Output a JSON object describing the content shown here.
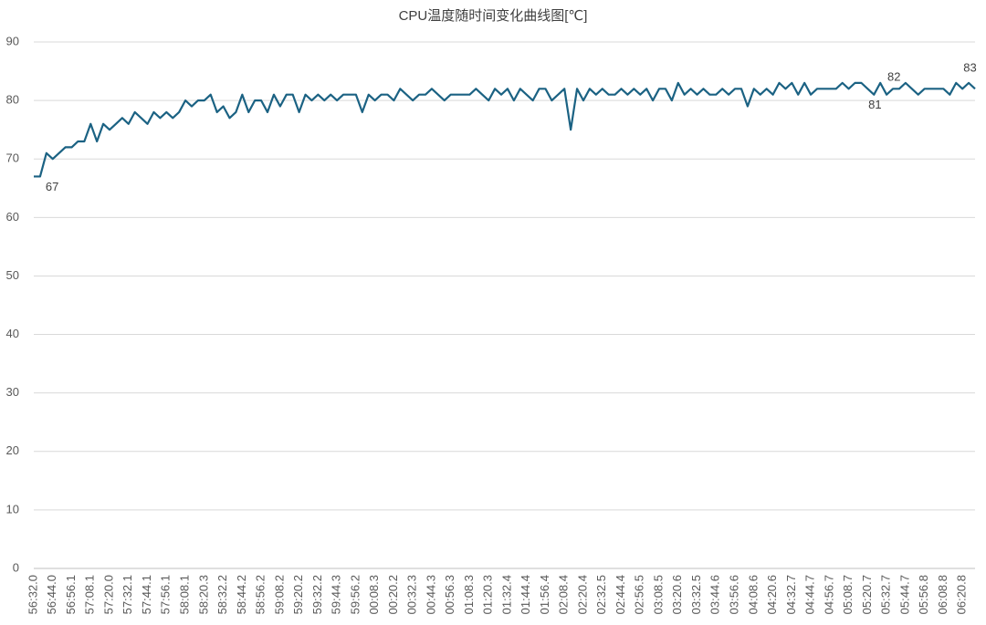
{
  "chart_data": {
    "type": "line",
    "title": "CPU温度随时间变化曲线图[℃]",
    "categories": [
      "56:32.0",
      null,
      null,
      "56:44.0",
      null,
      null,
      "56:56.1",
      null,
      null,
      "57:08.1",
      null,
      null,
      "57:20.0",
      null,
      null,
      "57:32.1",
      null,
      null,
      "57:44.1",
      null,
      null,
      "57:56.1",
      null,
      null,
      "58:08.1",
      null,
      null,
      "58:20.3",
      null,
      null,
      "58:32.2",
      null,
      null,
      "58:44.2",
      null,
      null,
      "58:56.2",
      null,
      null,
      "59:08.2",
      null,
      null,
      "59:20.2",
      null,
      null,
      "59:32.2",
      null,
      null,
      "59:44.3",
      null,
      null,
      "59:56.2",
      null,
      null,
      "00:08.3",
      null,
      null,
      "00:20.2",
      null,
      null,
      "00:32.3",
      null,
      null,
      "00:44.3",
      null,
      null,
      "00:56.3",
      null,
      null,
      "01:08.3",
      null,
      null,
      "01:20.3",
      null,
      null,
      "01:32.4",
      null,
      null,
      "01:44.4",
      null,
      null,
      "01:56.4",
      null,
      null,
      "02:08.4",
      null,
      null,
      "02:20.4",
      null,
      null,
      "02:32.5",
      null,
      null,
      "02:44.4",
      null,
      null,
      "02:56.5",
      null,
      null,
      "03:08.5",
      null,
      null,
      "03:20.6",
      null,
      null,
      "03:32.5",
      null,
      null,
      "03:44.6",
      null,
      null,
      "03:56.6",
      null,
      null,
      "04:08.6",
      null,
      null,
      "04:20.6",
      null,
      null,
      "04:32.7",
      null,
      null,
      "04:44.7",
      null,
      null,
      "04:56.7",
      null,
      null,
      "05:08.7",
      null,
      null,
      "05:20.7",
      null,
      null,
      "05:32.7",
      null,
      null,
      "05:44.7",
      null,
      null,
      "05:56.8",
      null,
      null,
      "06:08.8",
      null,
      null,
      "06:20.8",
      null,
      null
    ],
    "values": [
      67,
      67,
      71,
      70,
      71,
      72,
      72,
      73,
      73,
      76,
      73,
      76,
      75,
      76,
      77,
      76,
      78,
      77,
      76,
      78,
      77,
      78,
      77,
      78,
      80,
      79,
      80,
      80,
      81,
      78,
      79,
      77,
      78,
      81,
      78,
      80,
      80,
      78,
      81,
      79,
      81,
      81,
      78,
      81,
      80,
      81,
      80,
      81,
      80,
      81,
      81,
      81,
      78,
      81,
      80,
      81,
      81,
      80,
      82,
      81,
      80,
      81,
      81,
      82,
      81,
      80,
      81,
      81,
      81,
      81,
      82,
      81,
      80,
      82,
      81,
      82,
      80,
      82,
      81,
      80,
      82,
      82,
      80,
      81,
      82,
      75,
      82,
      80,
      82,
      81,
      82,
      81,
      81,
      82,
      81,
      82,
      81,
      82,
      80,
      82,
      82,
      80,
      83,
      81,
      82,
      81,
      82,
      81,
      81,
      82,
      81,
      82,
      82,
      79,
      82,
      81,
      82,
      81,
      83,
      82,
      83,
      81,
      83,
      81,
      82,
      82,
      82,
      82,
      83,
      82,
      83,
      83,
      82,
      81,
      83,
      81,
      82,
      82,
      83,
      82,
      81,
      82,
      82,
      82,
      82,
      81,
      83,
      82,
      83,
      82
    ],
    "data_labels_at": [
      1,
      135,
      136,
      146
    ],
    "color": "#1b6283",
    "ylim": [
      0,
      90
    ],
    "yticks": [
      0,
      10,
      20,
      30,
      40,
      50,
      60,
      70,
      80,
      90
    ],
    "grid": true
  }
}
